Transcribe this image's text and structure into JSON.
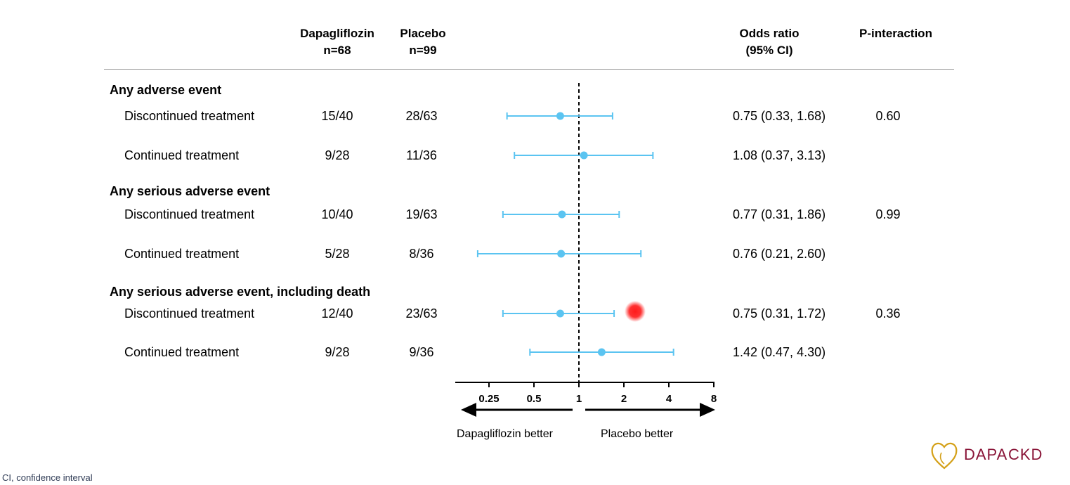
{
  "header": {
    "dapagliflozin": "Dapagliflozin",
    "dapagliflozin_n": "n=68",
    "placebo": "Placebo",
    "placebo_n": "n=99",
    "or": "Odds ratio",
    "or_ci": "(95% CI)",
    "p_interaction": "P-interaction"
  },
  "groups": [
    {
      "title": "Any adverse event",
      "rows": [
        {
          "label": "Discontinued treatment",
          "dapa": "15/40",
          "placebo": "28/63",
          "or_text": "0.75 (0.33, 1.68)",
          "p": "0.60"
        },
        {
          "label": "Continued treatment",
          "dapa": "9/28",
          "placebo": "11/36",
          "or_text": "1.08 (0.37, 3.13)",
          "p": ""
        }
      ]
    },
    {
      "title": "Any serious adverse event",
      "rows": [
        {
          "label": "Discontinued treatment",
          "dapa": "10/40",
          "placebo": "19/63",
          "or_text": "0.77 (0.31, 1.86)",
          "p": "0.99"
        },
        {
          "label": "Continued treatment",
          "dapa": "5/28",
          "placebo": "8/36",
          "or_text": "0.76 (0.21, 2.60)",
          "p": ""
        }
      ]
    },
    {
      "title": "Any serious adverse event, including death",
      "rows": [
        {
          "label": "Discontinued treatment",
          "dapa": "12/40",
          "placebo": "23/63",
          "or_text": "0.75 (0.31, 1.72)",
          "p": "0.36"
        },
        {
          "label": "Continued treatment",
          "dapa": "9/28",
          "placebo": "9/36",
          "or_text": "1.42 (0.47, 4.30)",
          "p": ""
        }
      ]
    }
  ],
  "chart_data": {
    "type": "forest",
    "x_scale": "log2",
    "xlim": [
      0.125,
      8
    ],
    "ticks": [
      {
        "value": 0.25,
        "label": "0.25"
      },
      {
        "value": 0.5,
        "label": "0.5"
      },
      {
        "value": 1,
        "label": "1"
      },
      {
        "value": 2,
        "label": "2"
      },
      {
        "value": 4,
        "label": "4"
      },
      {
        "value": 8,
        "label": "8"
      }
    ],
    "reference_line": 1,
    "left_label": "Dapagliflozin better",
    "right_label": "Placebo better",
    "points": [
      {
        "or": 0.75,
        "lo": 0.33,
        "hi": 1.68
      },
      {
        "or": 1.08,
        "lo": 0.37,
        "hi": 3.13
      },
      {
        "or": 0.77,
        "lo": 0.31,
        "hi": 1.86
      },
      {
        "or": 0.76,
        "lo": 0.21,
        "hi": 2.6
      },
      {
        "or": 0.75,
        "lo": 0.31,
        "hi": 1.72
      },
      {
        "or": 1.42,
        "lo": 0.47,
        "hi": 4.3
      }
    ],
    "point_color": "#5bc4f1",
    "highlight_color": "#ff1a1a"
  },
  "footnote": "CI, confidence interval",
  "logo": {
    "part1": "DAPA",
    "part2": "CKD",
    "color1": "#8a1538",
    "color2": "#8a1538",
    "heart_color": "#d4a017"
  }
}
